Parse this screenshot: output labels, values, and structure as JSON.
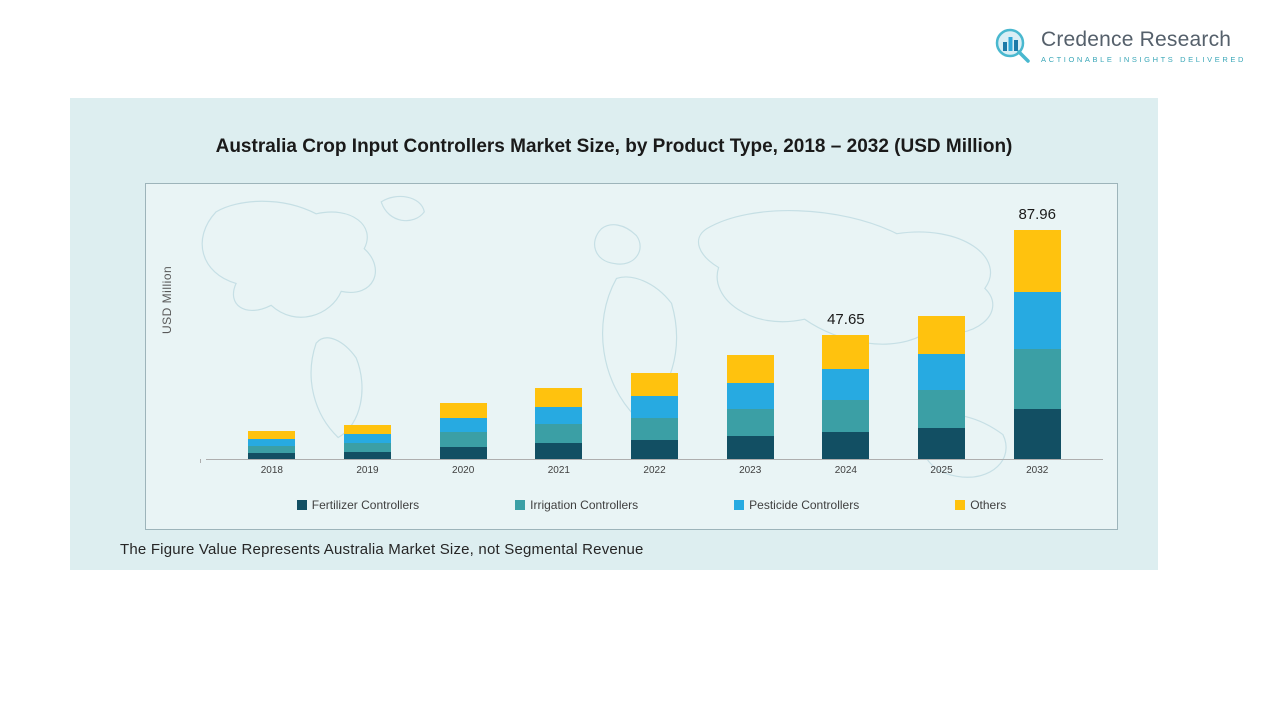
{
  "logo": {
    "name": "Credence Research",
    "tagline": "Actionable Insights Delivered"
  },
  "chart_data": {
    "type": "bar",
    "stacked": true,
    "title": "Australia Crop Input Controllers Market Size, by Product Type, 2018 – 2032 (USD Million)",
    "xlabel": "",
    "ylabel": "USD Million",
    "grid": false,
    "legend_position": "bottom",
    "categories": [
      "2018",
      "2019",
      "2020",
      "2021",
      "2022",
      "2023",
      "2024",
      "2025",
      "2032"
    ],
    "series": [
      {
        "name": "Fertilizer Controllers",
        "color": "#124f63",
        "values": [
          2.4,
          2.9,
          4.7,
          6.1,
          7.3,
          8.8,
          10.5,
          12.1,
          19.4
        ]
      },
      {
        "name": "Irrigation Controllers",
        "color": "#3b9fa5",
        "values": [
          2.8,
          3.4,
          5.6,
          7.2,
          8.6,
          10.4,
          12.4,
          14.3,
          22.9
        ]
      },
      {
        "name": "Pesticide Controllers",
        "color": "#27aae1",
        "values": [
          2.7,
          3.2,
          5.3,
          6.9,
          8.3,
          10.0,
          11.9,
          13.8,
          22.0
        ]
      },
      {
        "name": "Others",
        "color": "#ffc20e",
        "values": [
          2.9,
          3.5,
          5.8,
          7.3,
          9.0,
          10.9,
          12.85,
          14.8,
          23.66
        ]
      }
    ],
    "totals_labeled": {
      "2024": "47.65",
      "2032": "87.96"
    },
    "ylim": [
      0,
      95
    ]
  },
  "footnote": "The Figure Value Represents Australia Market Size, not Segmental Revenue"
}
